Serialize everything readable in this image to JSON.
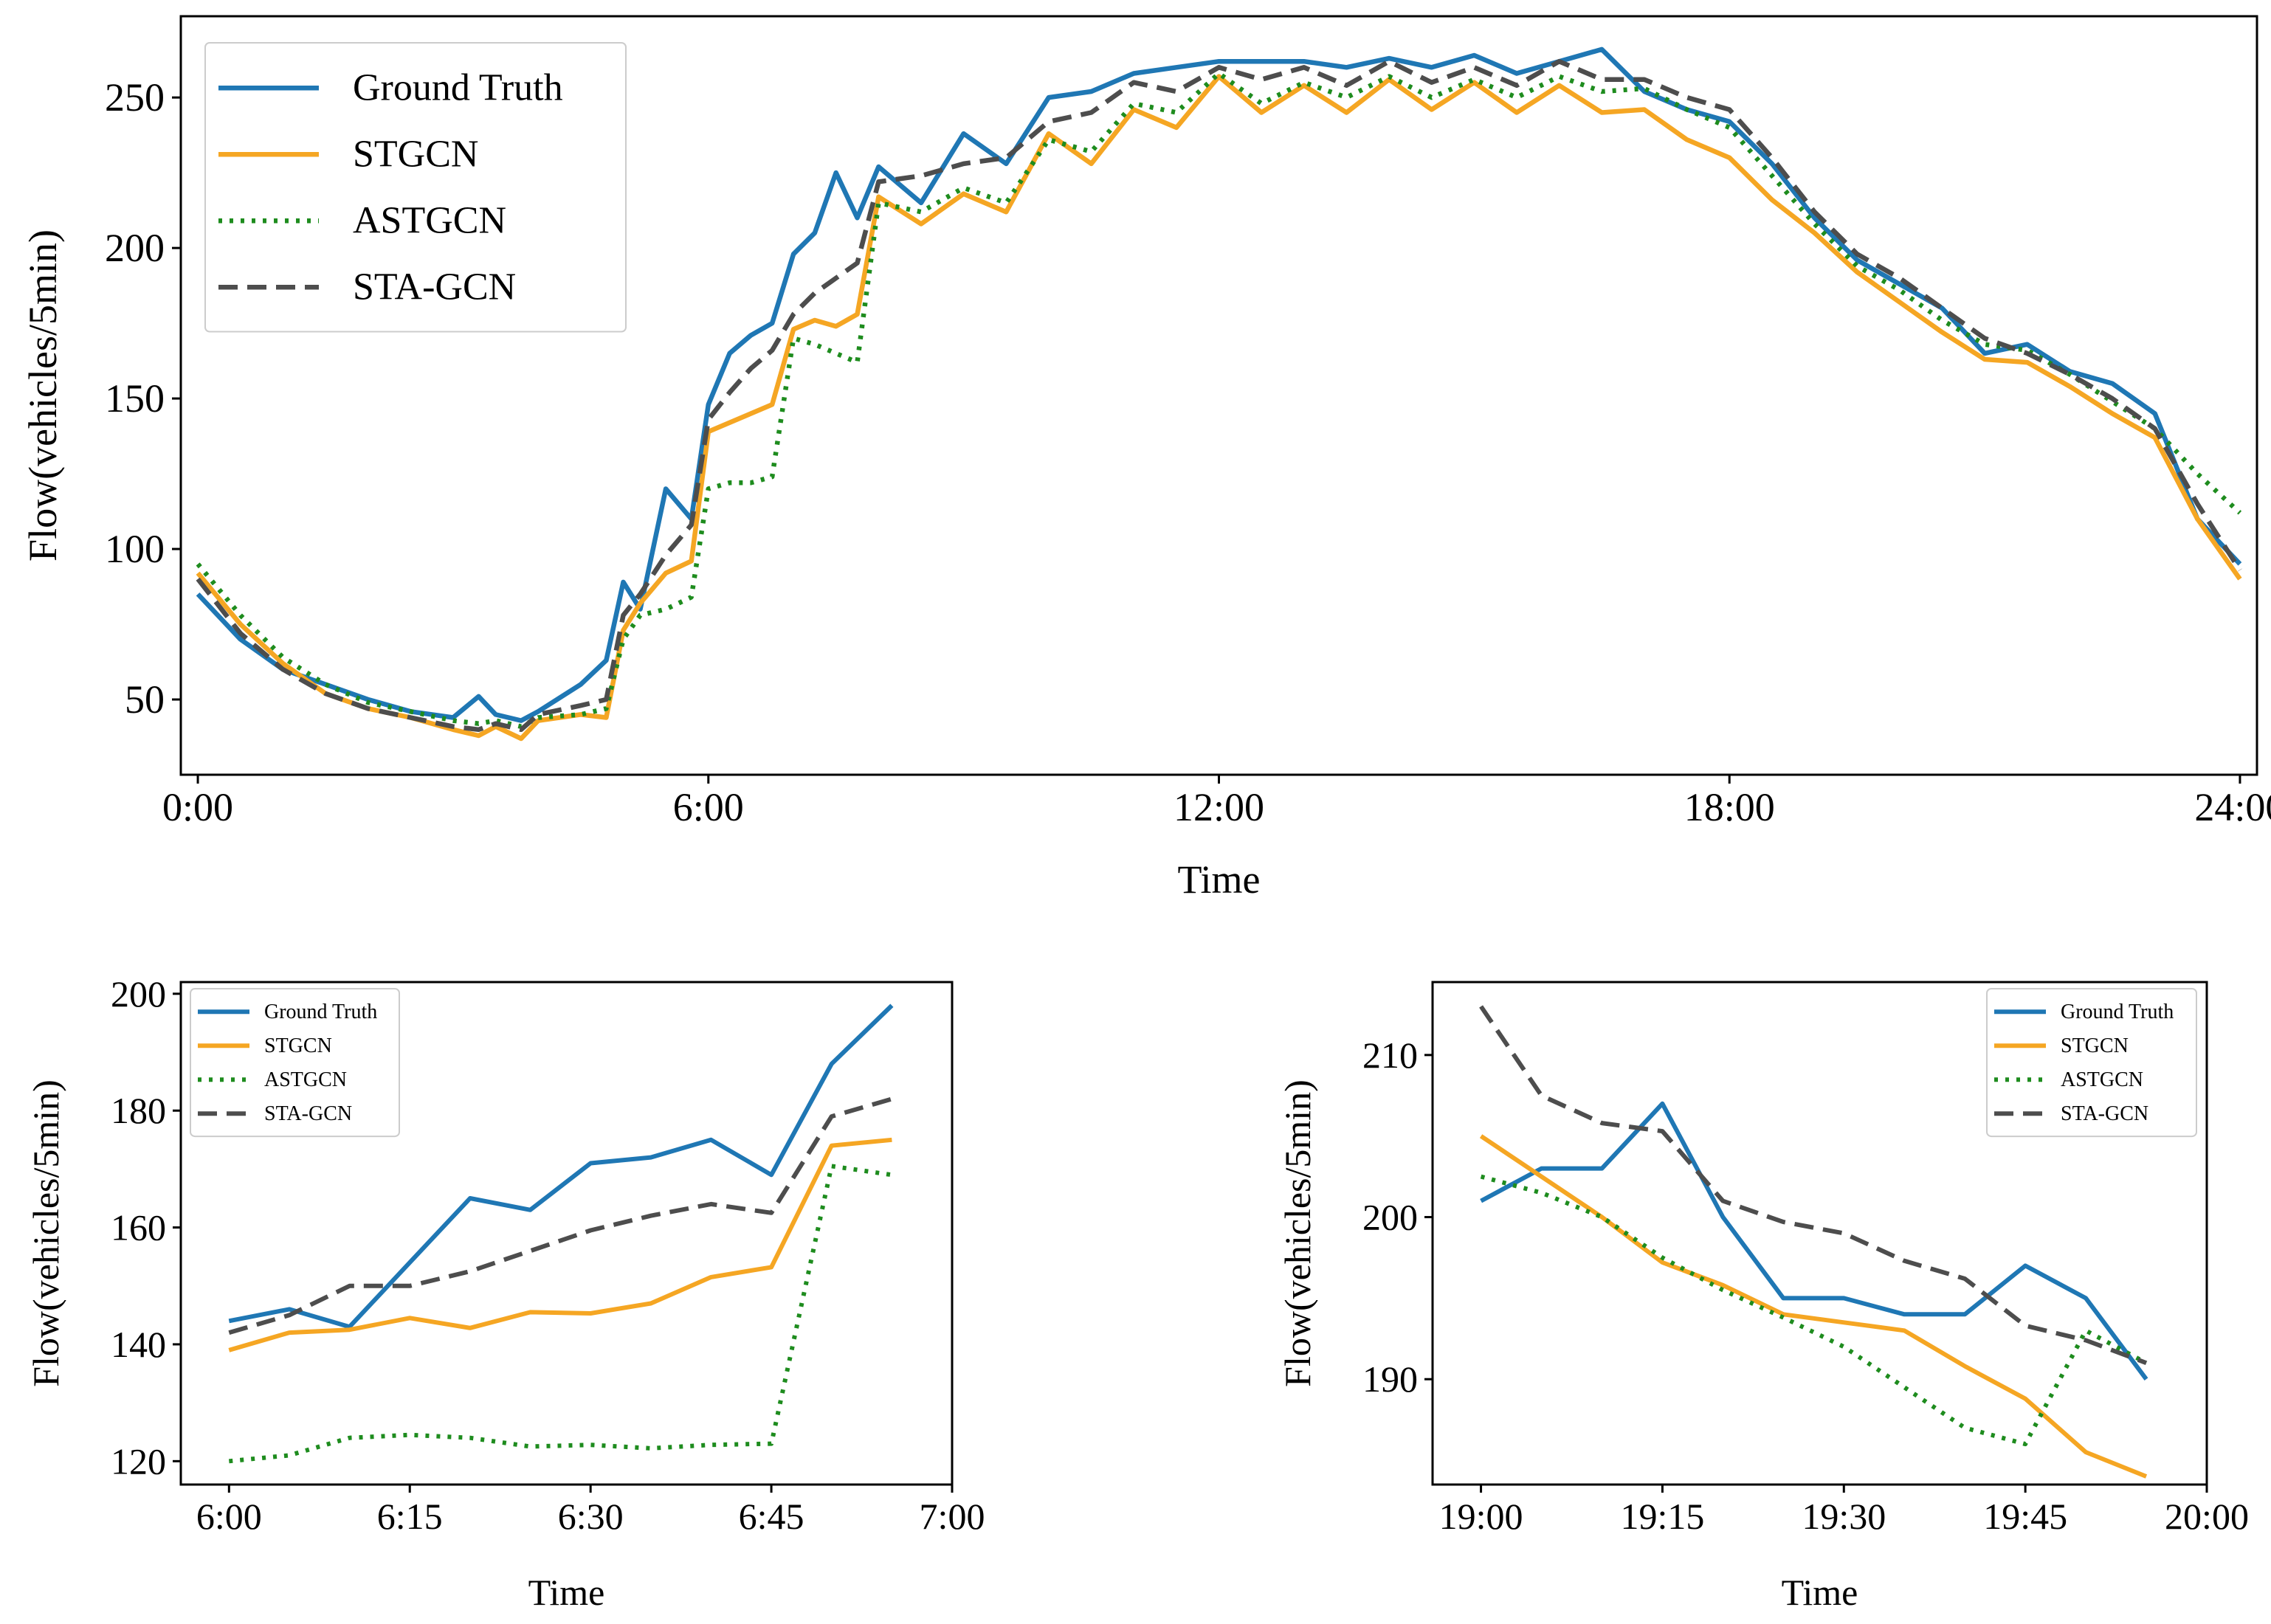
{
  "chart_data": [
    {
      "type": "line",
      "xlabel": "Time",
      "ylabel": "Flow(vehicles/5min)",
      "xlim": [
        -0.2,
        24.2
      ],
      "ylim": [
        25,
        277
      ],
      "xticks": [
        {
          "v": 0,
          "label": "0:00"
        },
        {
          "v": 6,
          "label": "6:00"
        },
        {
          "v": 12,
          "label": "12:00"
        },
        {
          "v": 18,
          "label": "18:00"
        },
        {
          "v": 24,
          "label": "24:00"
        }
      ],
      "yticks": [
        {
          "v": 50,
          "label": "50"
        },
        {
          "v": 100,
          "label": "100"
        },
        {
          "v": 150,
          "label": "150"
        },
        {
          "v": 200,
          "label": "200"
        },
        {
          "v": 250,
          "label": "250"
        }
      ],
      "legend": "top-left",
      "series": [
        {
          "name": "Ground Truth",
          "color": "#1f77b4",
          "style": "solid",
          "x": [
            0,
            0.5,
            1,
            1.5,
            2,
            2.5,
            3,
            3.3,
            3.5,
            3.8,
            4,
            4.5,
            4.8,
            5,
            5.2,
            5.5,
            5.8,
            6,
            6.25,
            6.5,
            6.75,
            7,
            7.25,
            7.5,
            7.75,
            8,
            8.5,
            9,
            9.5,
            10,
            10.5,
            11,
            11.5,
            12,
            12.5,
            13,
            13.5,
            14,
            14.5,
            15,
            15.5,
            16,
            16.5,
            17,
            17.5,
            18,
            18.5,
            19,
            19.5,
            20,
            20.5,
            21,
            21.5,
            22,
            22.5,
            23,
            23.5,
            24
          ],
          "y": [
            85,
            70,
            60,
            55,
            50,
            46,
            44,
            51,
            45,
            43,
            46,
            55,
            63,
            89,
            80,
            120,
            110,
            148,
            165,
            171,
            175,
            198,
            205,
            225,
            210,
            227,
            215,
            238,
            228,
            250,
            252,
            258,
            260,
            262,
            262,
            262,
            260,
            263,
            260,
            264,
            258,
            262,
            266,
            252,
            246,
            242,
            228,
            210,
            196,
            188,
            180,
            165,
            168,
            159,
            155,
            145,
            110,
            95
          ]
        },
        {
          "name": "STGCN",
          "color": "#f5a623",
          "style": "solid",
          "x": [
            0,
            0.5,
            1,
            1.5,
            2,
            2.5,
            3,
            3.3,
            3.5,
            3.8,
            4,
            4.5,
            4.8,
            5,
            5.2,
            5.5,
            5.8,
            6,
            6.25,
            6.5,
            6.75,
            7,
            7.25,
            7.5,
            7.75,
            8,
            8.5,
            9,
            9.5,
            10,
            10.5,
            11,
            11.5,
            12,
            12.5,
            13,
            13.5,
            14,
            14.5,
            15,
            15.5,
            16,
            16.5,
            17,
            17.5,
            18,
            18.5,
            19,
            19.5,
            20,
            20.5,
            21,
            21.5,
            22,
            22.5,
            23,
            23.5,
            24
          ],
          "y": [
            92,
            75,
            62,
            52,
            47,
            44,
            40,
            38,
            41,
            37,
            43,
            45,
            44,
            73,
            82,
            92,
            96,
            139,
            142,
            145,
            148,
            173,
            176,
            174,
            178,
            217,
            208,
            218,
            212,
            238,
            228,
            246,
            240,
            257,
            245,
            254,
            245,
            256,
            246,
            255,
            245,
            254,
            245,
            246,
            236,
            230,
            216,
            205,
            192,
            182,
            172,
            163,
            162,
            154,
            145,
            137,
            110,
            90
          ]
        },
        {
          "name": "ASTGCN",
          "color": "#1e8c1e",
          "style": "dotted",
          "x": [
            0,
            0.5,
            1,
            1.5,
            2,
            2.5,
            3,
            3.3,
            3.5,
            3.8,
            4,
            4.5,
            4.8,
            5,
            5.2,
            5.5,
            5.8,
            6,
            6.25,
            6.5,
            6.75,
            7,
            7.25,
            7.5,
            7.75,
            8,
            8.5,
            9,
            9.5,
            10,
            10.5,
            11,
            11.5,
            12,
            12.5,
            13,
            13.5,
            14,
            14.5,
            15,
            15.5,
            16,
            16.5,
            17,
            17.5,
            18,
            18.5,
            19,
            19.5,
            20,
            20.5,
            21,
            21.5,
            22,
            22.5,
            23,
            23.5,
            24
          ],
          "y": [
            95,
            78,
            64,
            55,
            49,
            46,
            43,
            42,
            43,
            41,
            44,
            45,
            47,
            70,
            78,
            80,
            84,
            120,
            122,
            122,
            124,
            170,
            168,
            165,
            162,
            215,
            212,
            220,
            215,
            236,
            232,
            248,
            245,
            258,
            248,
            255,
            250,
            257,
            250,
            256,
            250,
            257,
            252,
            253,
            246,
            240,
            224,
            208,
            194,
            186,
            176,
            168,
            166,
            158,
            149,
            140,
            125,
            112
          ]
        },
        {
          "name": "STA-GCN",
          "color": "#4d4d4d",
          "style": "dashed",
          "x": [
            0,
            0.5,
            1,
            1.5,
            2,
            2.5,
            3,
            3.3,
            3.5,
            3.8,
            4,
            4.5,
            4.8,
            5,
            5.2,
            5.5,
            5.8,
            6,
            6.25,
            6.5,
            6.75,
            7,
            7.25,
            7.5,
            7.75,
            8,
            8.5,
            9,
            9.5,
            10,
            10.5,
            11,
            11.5,
            12,
            12.5,
            13,
            13.5,
            14,
            14.5,
            15,
            15.5,
            16,
            16.5,
            17,
            17.5,
            18,
            18.5,
            19,
            19.5,
            20,
            20.5,
            21,
            21.5,
            22,
            22.5,
            23,
            23.5,
            24
          ],
          "y": [
            90,
            72,
            60,
            52,
            47,
            44,
            41,
            40,
            42,
            40,
            45,
            48,
            50,
            78,
            85,
            98,
            108,
            143,
            152,
            160,
            166,
            178,
            185,
            190,
            195,
            222,
            224,
            228,
            230,
            242,
            245,
            255,
            252,
            260,
            256,
            260,
            254,
            262,
            255,
            260,
            254,
            262,
            256,
            256,
            250,
            246,
            230,
            212,
            198,
            190,
            180,
            170,
            165,
            158,
            150,
            140,
            115,
            93
          ]
        }
      ]
    },
    {
      "type": "line",
      "xlabel": "Time",
      "ylabel": "Flow(vehicles/5min)",
      "xlim": [
        -4,
        60
      ],
      "ylim": [
        116,
        202
      ],
      "xticks": [
        {
          "v": 0,
          "label": "6:00"
        },
        {
          "v": 15,
          "label": "6:15"
        },
        {
          "v": 30,
          "label": "6:30"
        },
        {
          "v": 45,
          "label": "6:45"
        },
        {
          "v": 60,
          "label": "7:00"
        }
      ],
      "yticks": [
        {
          "v": 120,
          "label": "120"
        },
        {
          "v": 140,
          "label": "140"
        },
        {
          "v": 160,
          "label": "160"
        },
        {
          "v": 180,
          "label": "180"
        },
        {
          "v": 200,
          "label": "200"
        }
      ],
      "legend": "top-left",
      "series": [
        {
          "name": "Ground Truth",
          "color": "#1f77b4",
          "style": "solid",
          "x": [
            0,
            5,
            10,
            15,
            20,
            25,
            30,
            35,
            40,
            45,
            50,
            55
          ],
          "y": [
            144,
            146,
            143,
            154,
            165,
            163,
            171,
            172,
            175,
            169,
            188,
            198
          ]
        },
        {
          "name": "STGCN",
          "color": "#f5a623",
          "style": "solid",
          "x": [
            0,
            5,
            10,
            15,
            20,
            25,
            30,
            35,
            40,
            45,
            50,
            55
          ],
          "y": [
            139,
            142,
            142.5,
            144.5,
            142.8,
            145.5,
            145.3,
            147,
            151.5,
            153.2,
            174,
            175
          ]
        },
        {
          "name": "ASTGCN",
          "color": "#1e8c1e",
          "style": "dotted",
          "x": [
            0,
            5,
            10,
            15,
            20,
            25,
            30,
            35,
            40,
            45,
            50,
            55
          ],
          "y": [
            120,
            121,
            124,
            124.5,
            124,
            122.5,
            122.8,
            122.2,
            122.8,
            123,
            170.5,
            169
          ]
        },
        {
          "name": "STA-GCN",
          "color": "#4d4d4d",
          "style": "dashed",
          "x": [
            0,
            5,
            10,
            15,
            20,
            25,
            30,
            35,
            40,
            45,
            50,
            55
          ],
          "y": [
            142,
            145,
            150,
            150,
            152.5,
            156,
            159.5,
            162,
            164,
            162.5,
            179,
            182
          ]
        }
      ]
    },
    {
      "type": "line",
      "xlabel": "Time",
      "ylabel": "Flow(vehicles/5min)",
      "xlim": [
        -4,
        60
      ],
      "ylim": [
        183.5,
        214.5
      ],
      "xticks": [
        {
          "v": 0,
          "label": "19:00"
        },
        {
          "v": 15,
          "label": "19:15"
        },
        {
          "v": 30,
          "label": "19:30"
        },
        {
          "v": 45,
          "label": "19:45"
        },
        {
          "v": 60,
          "label": "20:00"
        }
      ],
      "yticks": [
        {
          "v": 190,
          "label": "190"
        },
        {
          "v": 200,
          "label": "200"
        },
        {
          "v": 210,
          "label": "210"
        }
      ],
      "legend": "top-right",
      "series": [
        {
          "name": "Ground Truth",
          "color": "#1f77b4",
          "style": "solid",
          "x": [
            0,
            5,
            10,
            15,
            20,
            25,
            30,
            35,
            40,
            45,
            50,
            55
          ],
          "y": [
            201,
            203,
            203,
            207,
            200,
            195,
            195,
            194,
            194,
            197,
            195,
            190
          ]
        },
        {
          "name": "STGCN",
          "color": "#f5a623",
          "style": "solid",
          "x": [
            0,
            5,
            10,
            15,
            20,
            25,
            30,
            35,
            40,
            45,
            50,
            55
          ],
          "y": [
            205,
            202.5,
            200,
            197.2,
            195.8,
            194,
            193.5,
            193,
            190.8,
            188.8,
            185.5,
            184
          ]
        },
        {
          "name": "ASTGCN",
          "color": "#1e8c1e",
          "style": "dotted",
          "x": [
            0,
            5,
            10,
            15,
            20,
            25,
            30,
            35,
            40,
            45,
            50,
            55
          ],
          "y": [
            202.5,
            201.5,
            200,
            197.5,
            195.5,
            193.8,
            192,
            189.5,
            187,
            186,
            193,
            191
          ]
        },
        {
          "name": "STA-GCN",
          "color": "#4d4d4d",
          "style": "dashed",
          "x": [
            0,
            5,
            10,
            15,
            20,
            25,
            30,
            35,
            40,
            45,
            50,
            55
          ],
          "y": [
            213,
            207.5,
            205.8,
            205.3,
            201,
            199.7,
            199,
            197.3,
            196.2,
            193.3,
            192.4,
            191
          ]
        }
      ]
    }
  ]
}
